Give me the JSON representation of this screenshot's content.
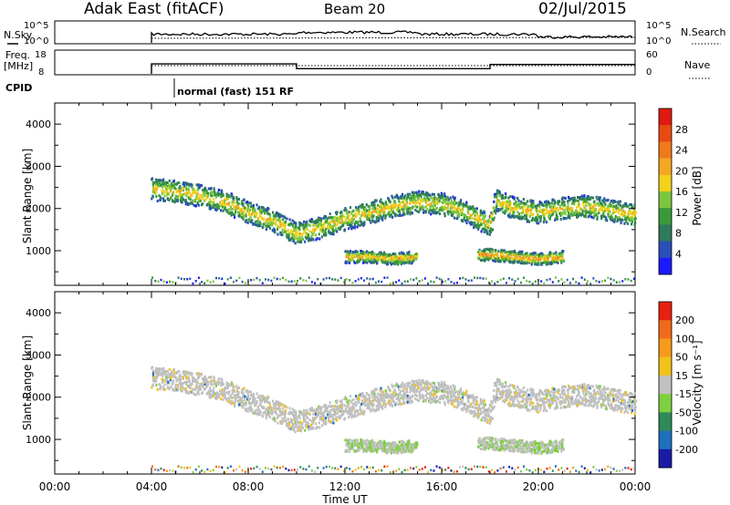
{
  "header": {
    "radar": "Adak East (fitACF)",
    "beam": "Beam 20",
    "date": "02/Jul/2015"
  },
  "top_panels": {
    "nsky_label": "N.Sky",
    "nsky_ticks": [
      "10^5",
      "10^0"
    ],
    "nsearch_label": "N.Search",
    "nsearch_ticks": [
      "10^5",
      "10^0"
    ],
    "freq_label_1": "Freq.",
    "freq_label_2": "[MHz]",
    "freq_ticks": [
      "18",
      "8"
    ],
    "nave_label": "Nave",
    "nave_ticks": [
      "60",
      "0"
    ],
    "cpid_label": "CPID",
    "mode_text": "normal (fast) 151 RF"
  },
  "colorbars": {
    "power": {
      "label": "Power [dB]",
      "ticks": [
        "28",
        "24",
        "20",
        "16",
        "12",
        "8",
        "4"
      ],
      "colors": [
        "#1a1aff",
        "#2a4fb8",
        "#2e7a5c",
        "#3a9a3a",
        "#7dc640",
        "#f2d21a",
        "#f5a623",
        "#f07a1a",
        "#e84a14",
        "#e01a10"
      ]
    },
    "velocity": {
      "label": "Velocity [m s⁻¹]",
      "ticks": [
        "200",
        "100",
        "50",
        "15",
        "-15",
        "-50",
        "-100",
        "-200"
      ],
      "colors": [
        "#1a1aa8",
        "#1f6fbf",
        "#2e8b57",
        "#7ed040",
        "#c0c0c0",
        "#f2c21a",
        "#f59a1a",
        "#f06a1a",
        "#e82010"
      ]
    }
  },
  "axes": {
    "ylabel": "Slant Range [km]",
    "xlabel": "Time UT",
    "xticks": [
      "00:00",
      "04:00",
      "08:00",
      "12:00",
      "16:00",
      "20:00",
      "00:00"
    ],
    "yticks": [
      "4000",
      "3000",
      "2000",
      "1000"
    ]
  },
  "chart_data": {
    "type": "heatmap",
    "title": "Adak East (fitACF) Beam 20 02/Jul/2015",
    "xlabel": "Time UT",
    "ylabel": "Slant Range [km]",
    "xlim_hours": [
      0,
      24
    ],
    "ylim_km": [
      180,
      4500
    ],
    "data_start_hours": 4.0,
    "frequency_steps": [
      {
        "start_h": 4.0,
        "end_h": 10.0,
        "freq_mhz": 12.4
      },
      {
        "start_h": 10.0,
        "end_h": 18.0,
        "freq_mhz": 10.5
      },
      {
        "start_h": 18.0,
        "end_h": 24.0,
        "freq_mhz": 12.2
      }
    ],
    "power_scatter_bands": [
      {
        "name": "main band",
        "points": [
          [
            4.0,
            2450
          ],
          [
            5.0,
            2400
          ],
          [
            6.0,
            2300
          ],
          [
            7.0,
            2150
          ],
          [
            8.0,
            1900
          ],
          [
            9.0,
            1700
          ],
          [
            10.0,
            1400
          ],
          [
            11.0,
            1550
          ],
          [
            12.0,
            1750
          ],
          [
            13.0,
            1900
          ],
          [
            14.0,
            2050
          ],
          [
            15.0,
            2150
          ],
          [
            16.0,
            2100
          ],
          [
            17.0,
            1900
          ],
          [
            18.0,
            1600
          ],
          [
            18.2,
            2200
          ],
          [
            19.0,
            2000
          ],
          [
            20.0,
            1900
          ],
          [
            21.0,
            2000
          ],
          [
            22.0,
            2050
          ],
          [
            23.0,
            1950
          ],
          [
            24.0,
            1850
          ]
        ],
        "power_db": 16
      },
      {
        "name": "mid band 12-15h",
        "points": [
          [
            12.0,
            850
          ],
          [
            13.0,
            850
          ],
          [
            14.0,
            800
          ],
          [
            15.0,
            850
          ]
        ],
        "power_db": 18
      },
      {
        "name": "mid band 18-21h",
        "points": [
          [
            17.5,
            900
          ],
          [
            18.0,
            900
          ],
          [
            19.0,
            850
          ],
          [
            20.0,
            800
          ],
          [
            21.0,
            850
          ]
        ],
        "power_db": 20
      }
    ],
    "colorbar_power_range_db": [
      0,
      32
    ],
    "colorbar_velocity_range": [
      -250,
      250
    ]
  }
}
